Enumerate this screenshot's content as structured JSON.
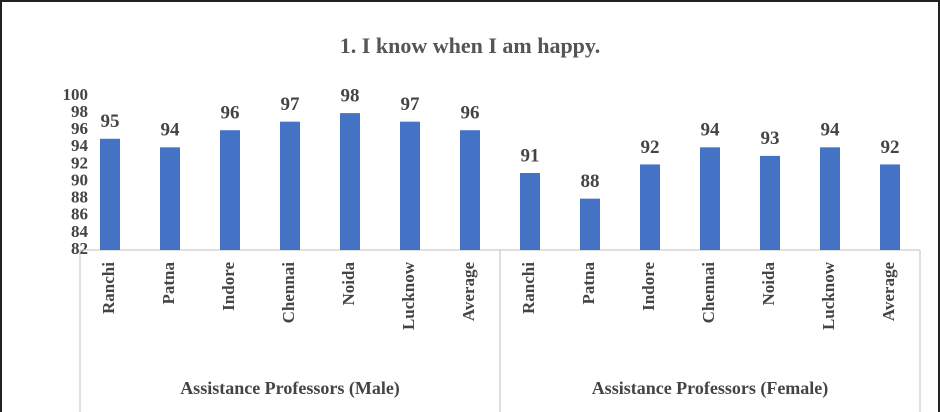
{
  "chart_data": {
    "type": "bar",
    "title": "1. I know when I am happy.",
    "groups": [
      {
        "name": "Assistance Professors (Male)",
        "categories": [
          "Ranchi",
          "Patna",
          "Indore",
          "Chennai",
          "Noida",
          "Lucknow",
          "Average"
        ],
        "values": [
          95,
          94,
          96,
          97,
          98,
          97,
          96
        ]
      },
      {
        "name": "Assistance Professors (Female)",
        "categories": [
          "Ranchi",
          "Patna",
          "Indore",
          "Chennai",
          "Noida",
          "Lucknow",
          "Average"
        ],
        "values": [
          91,
          88,
          92,
          94,
          93,
          94,
          92
        ]
      }
    ],
    "color": "#4472c4",
    "ylim": [
      82,
      100
    ],
    "yticks": [
      82,
      84,
      86,
      88,
      90,
      92,
      94,
      96,
      98,
      100
    ],
    "grid": false
  }
}
